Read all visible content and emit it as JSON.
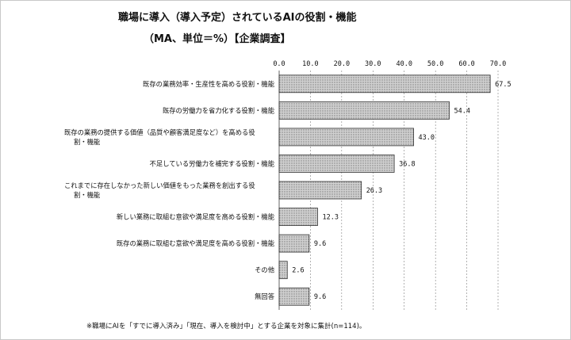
{
  "chart_data": {
    "type": "bar",
    "orientation": "horizontal",
    "title": "職場に導入（導入予定）されているAIの役割・機能",
    "subtitle": "（MA、単位＝%）【企業調査】",
    "xlim": [
      0,
      70
    ],
    "xticks": [
      "0.0",
      "10.0",
      "20.0",
      "30.0",
      "40.0",
      "50.0",
      "60.0",
      "70.0"
    ],
    "tick_values": [
      0,
      10,
      20,
      30,
      40,
      50,
      60,
      70
    ],
    "grid": true,
    "bar_fill": "dotted-gray",
    "categories": [
      [
        "既存の業務効率・生産性を高める役割・機能"
      ],
      [
        "既存の労働力を省力化する役割・機能"
      ],
      [
        "既存の業務の提供する価値（品質や顧客満足度など）を高める役",
        "割・機能"
      ],
      [
        "不足している労働力を補完する役割・機能"
      ],
      [
        "これまでに存在しなかった新しい価値をもった業務を創出する役",
        "割・機能"
      ],
      [
        "新しい業務に取組む意欲や満足度を高める役割・機能"
      ],
      [
        "既存の業務に取組む意欲や満足度を高める役割・機能"
      ],
      [
        "その他"
      ],
      [
        "無回答"
      ]
    ],
    "values": [
      67.5,
      54.4,
      43.0,
      36.8,
      26.3,
      12.3,
      9.6,
      2.6,
      9.6
    ],
    "value_labels": [
      "67.5",
      "54.4",
      "43.0",
      "36.8",
      "26.3",
      "12.3",
      "9.6",
      "2.6",
      "9.6"
    ]
  },
  "footnote": "※職場にAIを「すでに導入済み」「現在、導入を検討中」とする企業を対象に集計(n=114)。",
  "colors": {
    "bar_fill": "#d0d0d0",
    "bar_dot": "#7a7a7a",
    "bar_stroke": "#333333",
    "grid": "#666666"
  }
}
